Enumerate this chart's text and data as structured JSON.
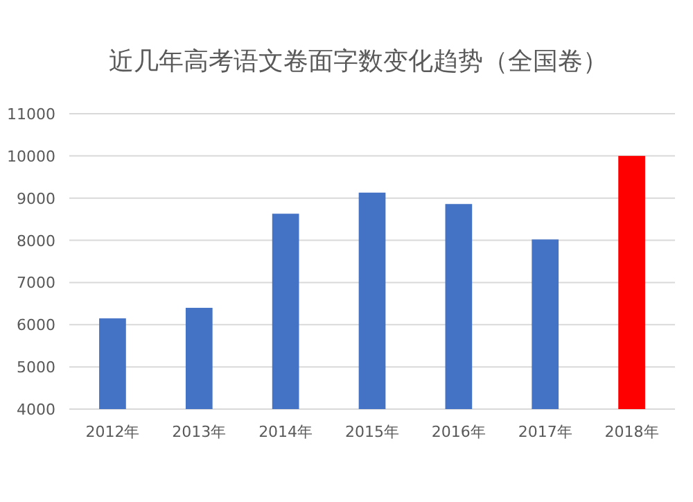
{
  "chart_data": {
    "type": "bar",
    "title": "近几年高考语文卷面字数变化趋势（全国卷）",
    "categories": [
      "2012年",
      "2013年",
      "2014年",
      "2015年",
      "2016年",
      "2017年",
      "2018年"
    ],
    "values": [
      6150,
      6400,
      8630,
      9130,
      8860,
      8020,
      10000
    ],
    "colors": [
      "#4472c4",
      "#4472c4",
      "#4472c4",
      "#4472c4",
      "#4472c4",
      "#4472c4",
      "#ff0000"
    ],
    "ylim": [
      4000,
      11000
    ],
    "yticks": [
      4000,
      5000,
      6000,
      7000,
      8000,
      9000,
      10000,
      11000
    ],
    "grid": "y"
  }
}
